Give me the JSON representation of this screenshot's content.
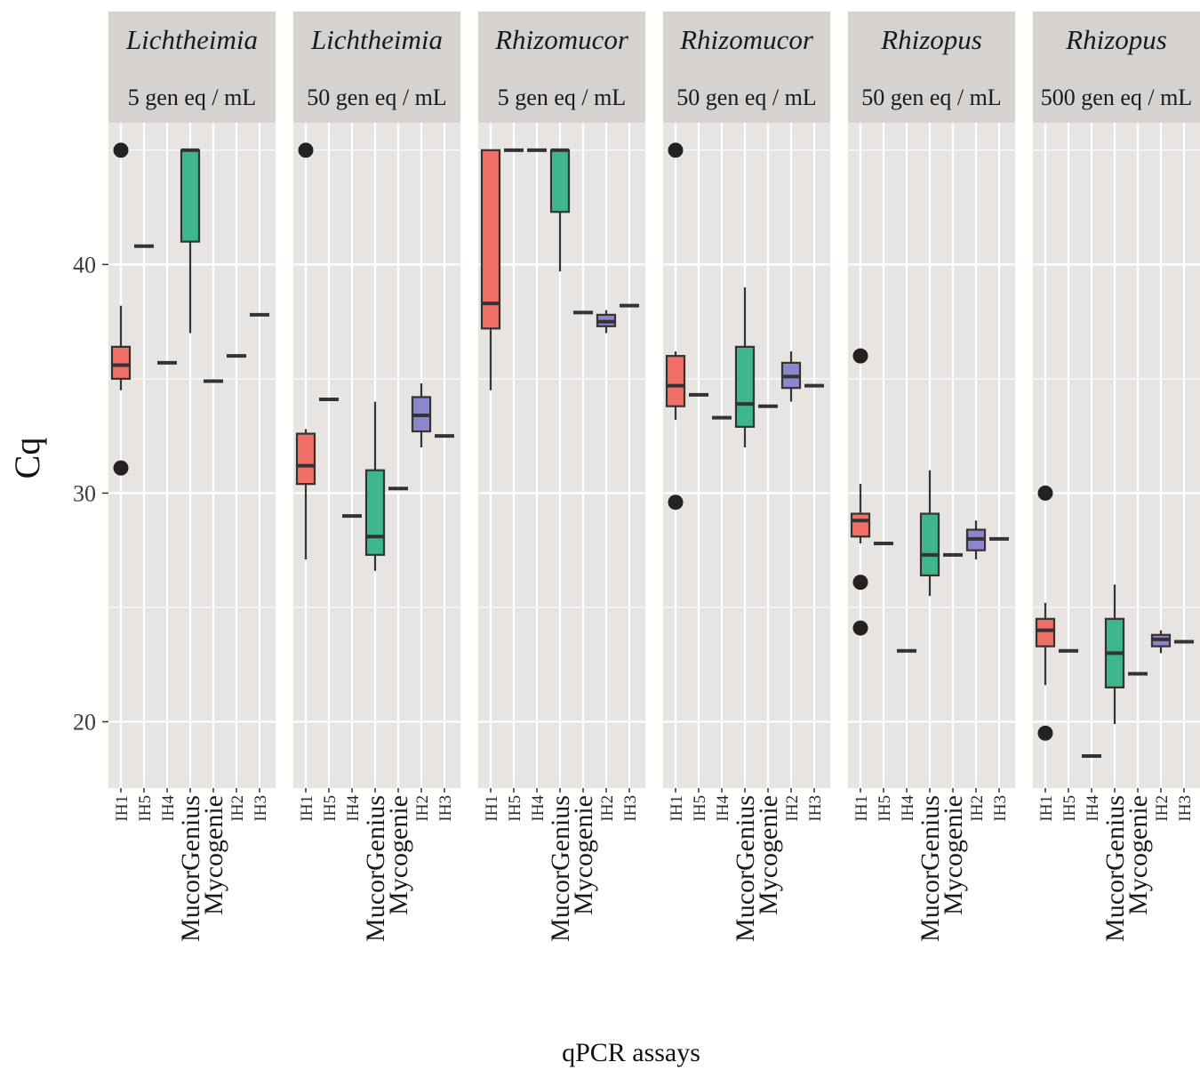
{
  "chart_data": {
    "type": "boxplot",
    "ylabel": "Cq",
    "xlabel": "qPCR assays",
    "yticks": [
      20,
      30,
      40
    ],
    "ylim": [
      17.1,
      46.2
    ],
    "categories": [
      "IH1",
      "IH5",
      "IH4",
      "MucorGenius",
      "Mycogenie",
      "IH2",
      "IH3"
    ],
    "category_colors": {
      "IH1": "#f07068",
      "MucorGenius": "#3db68e",
      "IH2": "#8a87cc"
    },
    "panels": [
      {
        "title": "Lichtheimia",
        "subtitle": "5 gen eq / mL",
        "boxes": [
          {
            "category": "IH1",
            "q1": 35.0,
            "median": 35.6,
            "q3": 36.4,
            "lower": 34.5,
            "upper": 38.2,
            "outliers": [
              45.0,
              31.1
            ]
          },
          {
            "category": "IH5",
            "median": 40.8
          },
          {
            "category": "IH4",
            "median": 35.7
          },
          {
            "category": "MucorGenius",
            "q1": 41.0,
            "median": 45.0,
            "q3": 45.0,
            "lower": 37.0,
            "upper": 45.0,
            "outliers": []
          },
          {
            "category": "Mycogenie",
            "median": 34.9
          },
          {
            "category": "IH2",
            "median": 36.0
          },
          {
            "category": "IH3",
            "median": 37.8
          }
        ]
      },
      {
        "title": "Lichtheimia",
        "subtitle": "50 gen eq / mL",
        "boxes": [
          {
            "category": "IH1",
            "q1": 30.4,
            "median": 31.2,
            "q3": 32.6,
            "lower": 27.1,
            "upper": 32.8,
            "outliers": [
              45.0
            ]
          },
          {
            "category": "IH5",
            "median": 34.1
          },
          {
            "category": "IH4",
            "median": 29.0
          },
          {
            "category": "MucorGenius",
            "q1": 27.3,
            "median": 28.1,
            "q3": 31.0,
            "lower": 26.6,
            "upper": 34.0,
            "outliers": []
          },
          {
            "category": "Mycogenie",
            "median": 30.2
          },
          {
            "category": "IH2",
            "q1": 32.7,
            "median": 33.4,
            "q3": 34.2,
            "lower": 32.0,
            "upper": 34.8,
            "outliers": []
          },
          {
            "category": "IH3",
            "median": 32.5
          }
        ]
      },
      {
        "title": "Rhizomucor",
        "subtitle": "5 gen eq / mL",
        "boxes": [
          {
            "category": "IH1",
            "q1": 37.2,
            "median": 38.3,
            "q3": 45.0,
            "lower": 34.5,
            "upper": 45.0,
            "outliers": []
          },
          {
            "category": "IH5",
            "median": 45.0
          },
          {
            "category": "IH4",
            "median": 45.0
          },
          {
            "category": "MucorGenius",
            "q1": 42.3,
            "median": 45.0,
            "q3": 45.0,
            "lower": 39.7,
            "upper": 45.0,
            "outliers": []
          },
          {
            "category": "Mycogenie",
            "median": 37.9
          },
          {
            "category": "IH2",
            "q1": 37.3,
            "median": 37.5,
            "q3": 37.8,
            "lower": 37.0,
            "upper": 38.0,
            "outliers": []
          },
          {
            "category": "IH3",
            "median": 38.2
          }
        ]
      },
      {
        "title": "Rhizomucor",
        "subtitle": "50 gen eq / mL",
        "boxes": [
          {
            "category": "IH1",
            "q1": 33.8,
            "median": 34.7,
            "q3": 36.0,
            "lower": 33.2,
            "upper": 36.2,
            "outliers": [
              45.0,
              29.6
            ]
          },
          {
            "category": "IH5",
            "median": 34.3
          },
          {
            "category": "IH4",
            "median": 33.3
          },
          {
            "category": "MucorGenius",
            "q1": 32.9,
            "median": 33.9,
            "q3": 36.4,
            "lower": 32.0,
            "upper": 39.0,
            "outliers": []
          },
          {
            "category": "Mycogenie",
            "median": 33.8
          },
          {
            "category": "IH2",
            "q1": 34.6,
            "median": 35.1,
            "q3": 35.7,
            "lower": 34.0,
            "upper": 36.2,
            "outliers": []
          },
          {
            "category": "IH3",
            "median": 34.7
          }
        ]
      },
      {
        "title": "Rhizopus",
        "subtitle": "50 gen eq / mL",
        "boxes": [
          {
            "category": "IH1",
            "q1": 28.1,
            "median": 28.8,
            "q3": 29.1,
            "lower": 27.8,
            "upper": 30.4,
            "outliers": [
              36.0,
              26.1,
              24.1
            ]
          },
          {
            "category": "IH5",
            "median": 27.8
          },
          {
            "category": "IH4",
            "median": 23.1
          },
          {
            "category": "MucorGenius",
            "q1": 26.4,
            "median": 27.3,
            "q3": 29.1,
            "lower": 25.5,
            "upper": 31.0,
            "outliers": []
          },
          {
            "category": "Mycogenie",
            "median": 27.3
          },
          {
            "category": "IH2",
            "q1": 27.5,
            "median": 28.0,
            "q3": 28.4,
            "lower": 27.1,
            "upper": 28.8,
            "outliers": []
          },
          {
            "category": "IH3",
            "median": 28.0
          }
        ]
      },
      {
        "title": "Rhizopus",
        "subtitle": "500 gen eq / mL",
        "boxes": [
          {
            "category": "IH1",
            "q1": 23.3,
            "median": 24.0,
            "q3": 24.5,
            "lower": 21.6,
            "upper": 25.2,
            "outliers": [
              30.0,
              19.5
            ]
          },
          {
            "category": "IH5",
            "median": 23.1
          },
          {
            "category": "IH4",
            "median": 18.5
          },
          {
            "category": "MucorGenius",
            "q1": 21.5,
            "median": 23.0,
            "q3": 24.5,
            "lower": 19.9,
            "upper": 26.0,
            "outliers": []
          },
          {
            "category": "Mycogenie",
            "median": 22.1
          },
          {
            "category": "IH2",
            "q1": 23.3,
            "median": 23.6,
            "q3": 23.8,
            "lower": 23.0,
            "upper": 24.0,
            "outliers": []
          },
          {
            "category": "IH3",
            "median": 23.5
          }
        ]
      }
    ]
  }
}
